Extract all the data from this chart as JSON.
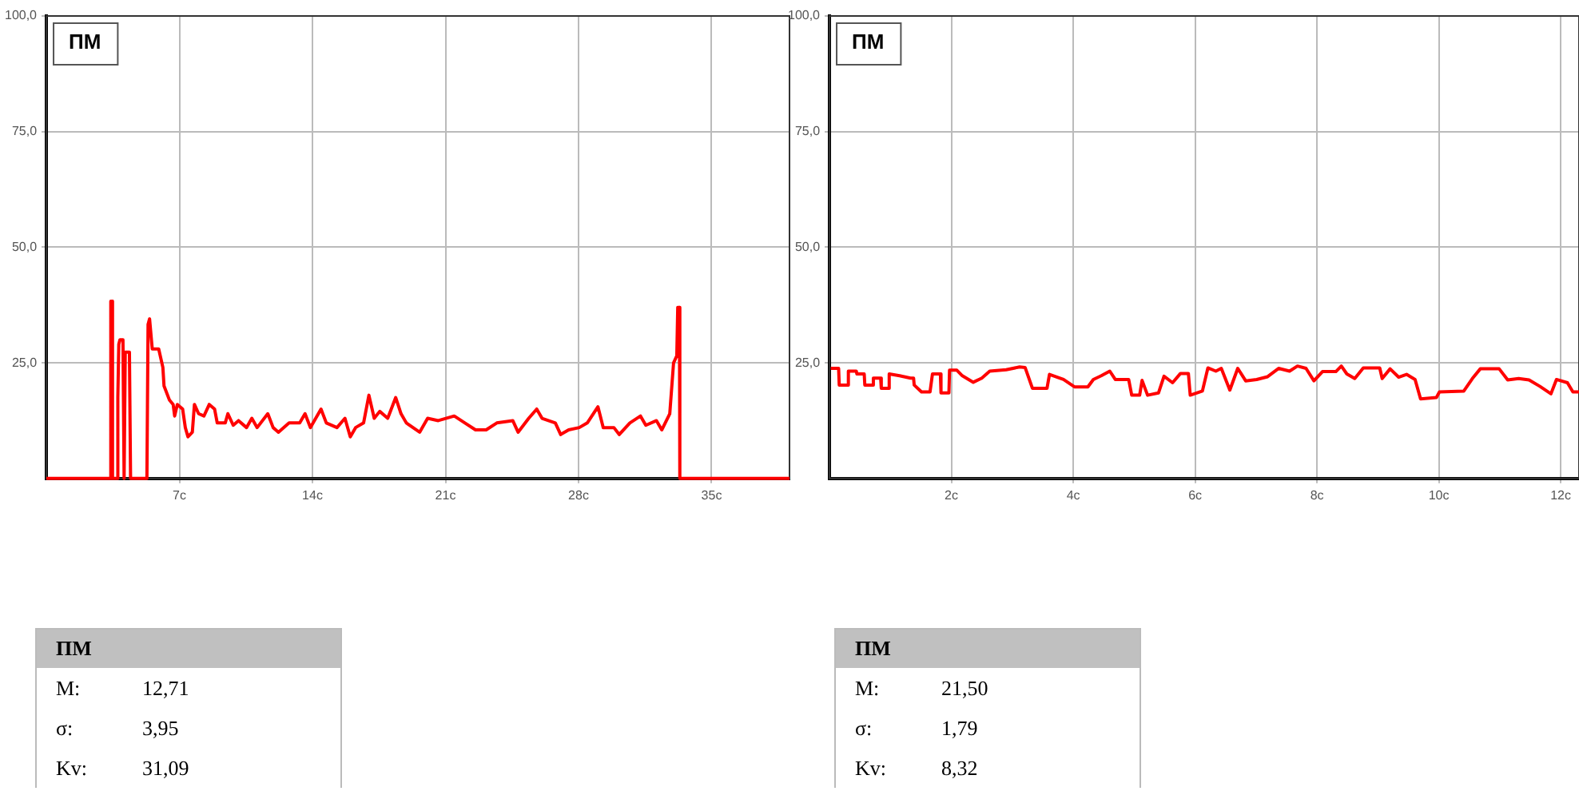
{
  "chart_data": [
    {
      "type": "line",
      "legend": "top left",
      "grid": true,
      "marker": "none",
      "line_style": "solid",
      "xlim": [
        0,
        39.1
      ],
      "ylim": [
        0,
        100
      ],
      "xticks": [
        {
          "value": 7,
          "label": "7c"
        },
        {
          "value": 14,
          "label": "14c"
        },
        {
          "value": 21,
          "label": "21c"
        },
        {
          "value": 28,
          "label": "28c"
        },
        {
          "value": 35,
          "label": "35c"
        }
      ],
      "yticks": [
        {
          "value": 25,
          "label": "25,0"
        },
        {
          "value": 50,
          "label": "50,0"
        },
        {
          "value": 75,
          "label": "75,0"
        },
        {
          "value": 100,
          "label": "100,0"
        }
      ],
      "series": [
        {
          "name": "ПМ",
          "color": "#ff0000",
          "x": [
            0,
            3.38,
            3.39,
            3.47,
            3.48,
            3.75,
            3.76,
            3.81,
            3.87,
            4.03,
            4.09,
            4.15,
            4.37,
            4.43,
            5.29,
            5.35,
            5.43,
            5.57,
            5.91,
            6.13,
            6.19,
            6.47,
            6.67,
            6.75,
            6.89,
            7.17,
            7.31,
            7.45,
            7.68,
            7.79,
            8.01,
            8.29,
            8.57,
            8.85,
            8.99,
            9.41,
            9.55,
            9.83,
            10.11,
            10.53,
            10.81,
            11.09,
            11.65,
            11.93,
            12.21,
            12.77,
            13.33,
            13.61,
            13.89,
            14.45,
            14.73,
            15.29,
            15.71,
            15.99,
            16.27,
            16.69,
            16.97,
            17.25,
            17.54,
            17.96,
            18.38,
            18.66,
            18.94,
            19.64,
            20.06,
            20.62,
            21.46,
            22.02,
            22.58,
            23.14,
            23.7,
            24.54,
            24.82,
            25.38,
            25.8,
            26.08,
            26.78,
            27.06,
            27.48,
            28.04,
            28.46,
            29.02,
            29.3,
            29.86,
            30.14,
            30.7,
            31.26,
            31.54,
            32.1,
            32.38,
            32.8,
            33.0,
            33.17,
            33.22,
            33.31,
            33.33,
            39.1
          ],
          "values": [
            0,
            0,
            38.3,
            38.3,
            0,
            0,
            17.5,
            29,
            30,
            30,
            0,
            27.3,
            27.3,
            0,
            0,
            33.3,
            34.5,
            28,
            28,
            24,
            20,
            17,
            16,
            13.5,
            16,
            15,
            11,
            9,
            10,
            16,
            14,
            13.5,
            16,
            15,
            12,
            12,
            14,
            11.5,
            12.5,
            11,
            13,
            11,
            14,
            11,
            10,
            12,
            12,
            14,
            11,
            15,
            12,
            11,
            13,
            9,
            11,
            12,
            18,
            13,
            14.5,
            13,
            17.5,
            14,
            12,
            10,
            13,
            12.5,
            13.5,
            12,
            10.5,
            10.5,
            12,
            12.5,
            10,
            13,
            15,
            13,
            12,
            9.5,
            10.5,
            11,
            12,
            15.5,
            11,
            11,
            9.5,
            12,
            13.5,
            11.5,
            12.5,
            10.5,
            14,
            25,
            26.5,
            37,
            37,
            0,
            0
          ]
        }
      ]
    },
    {
      "type": "line",
      "legend": "top left",
      "grid": true,
      "marker": "none",
      "line_style": "solid",
      "xlim": [
        0,
        12.3
      ],
      "ylim": [
        0,
        100
      ],
      "xticks": [
        {
          "value": 2,
          "label": "2c"
        },
        {
          "value": 4,
          "label": "4c"
        },
        {
          "value": 6,
          "label": "6c"
        },
        {
          "value": 8,
          "label": "8c"
        },
        {
          "value": 10,
          "label": "10c"
        },
        {
          "value": 12,
          "label": "12c"
        }
      ],
      "yticks": [
        {
          "value": 25,
          "label": "25,0"
        },
        {
          "value": 50,
          "label": "50,0"
        },
        {
          "value": 75,
          "label": "75,0"
        },
        {
          "value": 100,
          "label": "100,0"
        }
      ],
      "series": [
        {
          "name": "ПМ",
          "color": "#ff0000",
          "x": [
            0.02,
            0.15,
            0.16,
            0.3,
            0.31,
            0.44,
            0.45,
            0.57,
            0.58,
            0.71,
            0.72,
            0.84,
            0.85,
            0.97,
            0.98,
            1.15,
            1.33,
            1.38,
            1.39,
            1.51,
            1.65,
            1.69,
            1.82,
            1.83,
            1.96,
            1.97,
            2.09,
            2.18,
            2.36,
            2.5,
            2.63,
            2.9,
            3.12,
            3.21,
            3.33,
            3.57,
            3.61,
            3.84,
            4.02,
            4.24,
            4.33,
            4.46,
            4.6,
            4.69,
            4.91,
            4.96,
            5.09,
            5.13,
            5.22,
            5.4,
            5.49,
            5.63,
            5.76,
            5.89,
            5.92,
            6.12,
            6.21,
            6.34,
            6.43,
            6.57,
            6.7,
            6.83,
            7.01,
            7.19,
            7.37,
            7.55,
            7.68,
            7.82,
            7.95,
            8.09,
            8.31,
            8.4,
            8.49,
            8.62,
            8.76,
            9.03,
            9.07,
            9.2,
            9.34,
            9.47,
            9.61,
            9.7,
            9.96,
            10.01,
            10.41,
            10.55,
            10.68,
            10.99,
            11.13,
            11.31,
            11.48,
            11.66,
            11.84,
            11.93,
            12.11,
            12.2,
            12.3
          ],
          "values": [
            23.8,
            23.8,
            20.2,
            20.2,
            23.2,
            23.2,
            22.6,
            22.6,
            20.2,
            20.2,
            21.7,
            21.7,
            19.5,
            19.5,
            22.6,
            22.2,
            21.7,
            21.7,
            20.2,
            18.7,
            18.7,
            22.6,
            22.6,
            18.5,
            18.5,
            23.4,
            23.4,
            22.2,
            20.8,
            21.7,
            23.2,
            23.5,
            24.1,
            24.0,
            19.5,
            19.5,
            22.5,
            21.4,
            19.8,
            19.8,
            21.4,
            22.2,
            23.2,
            21.4,
            21.4,
            18.0,
            18.0,
            21.2,
            18.0,
            18.5,
            22.1,
            20.7,
            22.7,
            22.7,
            18.0,
            18.9,
            23.9,
            23.2,
            23.8,
            19.1,
            23.8,
            21.1,
            21.4,
            22.0,
            23.8,
            23.2,
            24.3,
            23.8,
            21.1,
            23.1,
            23.1,
            24.3,
            22.6,
            21.6,
            23.9,
            23.9,
            21.6,
            23.7,
            21.9,
            22.5,
            21.4,
            17.2,
            17.5,
            18.7,
            18.9,
            21.6,
            23.7,
            23.7,
            21.3,
            21.6,
            21.3,
            19.9,
            18.3,
            21.4,
            20.7,
            18.7,
            18.7
          ]
        }
      ]
    },
    {
      "type": "other",
      "title": "ПМ",
      "annotations": [
        "M:",
        "12,71",
        "σ:",
        "3,95",
        "Kv:",
        "31,09"
      ]
    },
    {
      "type": "other",
      "title": "ПМ",
      "annotations": [
        "M:",
        "21,50",
        "σ:",
        "1,79",
        "Kv:",
        "8,32"
      ]
    }
  ]
}
